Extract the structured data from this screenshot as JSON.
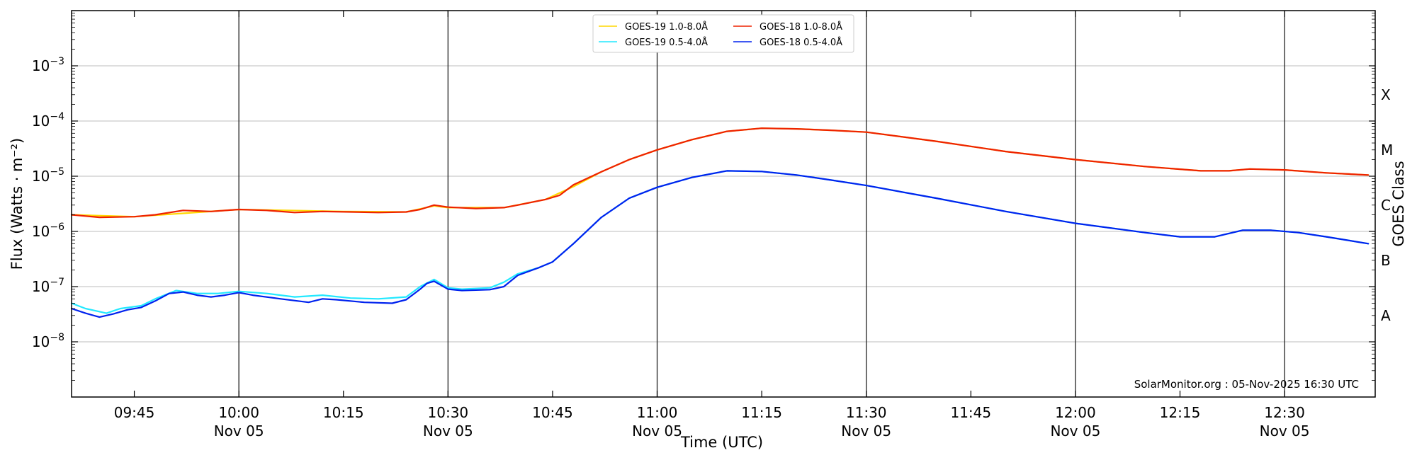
{
  "chart_data": {
    "type": "line",
    "y_scale": "log",
    "ylim": [
      1e-09,
      0.01
    ],
    "xlim": [
      "2025-11-05 09:36",
      "2025-11-05 12:43"
    ],
    "grid": "horizontal gridlines at each decade; vertical lines every 30 minutes",
    "legend_position": "top-center",
    "xlabel": "Time (UTC)",
    "ylabel": "Flux (Watts · m⁻²)",
    "ylabel_right": "GOES Class",
    "x_ticks": [
      {
        "time": "09:45",
        "date": ""
      },
      {
        "time": "10:00",
        "date": "Nov 05"
      },
      {
        "time": "10:15",
        "date": ""
      },
      {
        "time": "10:30",
        "date": "Nov 05"
      },
      {
        "time": "10:45",
        "date": ""
      },
      {
        "time": "11:00",
        "date": "Nov 05"
      },
      {
        "time": "11:15",
        "date": ""
      },
      {
        "time": "11:30",
        "date": "Nov 05"
      },
      {
        "time": "11:45",
        "date": ""
      },
      {
        "time": "12:00",
        "date": "Nov 05"
      },
      {
        "time": "12:15",
        "date": ""
      },
      {
        "time": "12:30",
        "date": "Nov 05"
      }
    ],
    "y_ticks": [
      {
        "value": 1e-08,
        "base": "10",
        "exp": "−8"
      },
      {
        "value": 1e-07,
        "base": "10",
        "exp": "−7"
      },
      {
        "value": 1e-06,
        "base": "10",
        "exp": "−6"
      },
      {
        "value": 1e-05,
        "base": "10",
        "exp": "−5"
      },
      {
        "value": 0.0001,
        "base": "10",
        "exp": "−4"
      },
      {
        "value": 0.001,
        "base": "10",
        "exp": "−3"
      }
    ],
    "goes_classes": [
      {
        "label": "A",
        "flux": 3e-08
      },
      {
        "label": "B",
        "flux": 3e-07
      },
      {
        "label": "C",
        "flux": 3e-06
      },
      {
        "label": "M",
        "flux": 3e-05
      },
      {
        "label": "X",
        "flux": 0.0003
      }
    ],
    "credit": "SolarMonitor.org : 05-Nov-2025 16:30 UTC",
    "series": [
      {
        "name": "GOES-19 1.0-8.0Å",
        "color": "#ffd700",
        "x": [
          "09:36",
          "09:45",
          "10:00",
          "10:15",
          "10:24",
          "10:28",
          "10:30",
          "10:38",
          "10:44",
          "10:48",
          "10:52",
          "10:56",
          "11:00",
          "11:05",
          "11:10",
          "11:15",
          "11:20",
          "11:25",
          "11:30",
          "11:40",
          "11:50",
          "12:00",
          "12:10",
          "12:18",
          "12:22",
          "12:25",
          "12:30",
          "12:36",
          "12:42"
        ],
        "y": [
          2e-06,
          1.85e-06,
          2.5e-06,
          2.3e-06,
          2.25e-06,
          2.9e-06,
          2.7e-06,
          2.7e-06,
          3.8e-06,
          6.5e-06,
          1.2e-05,
          2e-05,
          3e-05,
          4.6e-05,
          6.5e-05,
          7.4e-05,
          7.2e-05,
          6.8e-05,
          6.3e-05,
          4.3e-05,
          2.8e-05,
          2e-05,
          1.5e-05,
          1.25e-05,
          1.25e-05,
          1.35e-05,
          1.3e-05,
          1.15e-05,
          1.05e-05
        ]
      },
      {
        "name": "GOES-18 1.0-8.0Å",
        "color": "#ee2200",
        "x": [
          "09:36",
          "09:38",
          "09:40",
          "09:45",
          "09:48",
          "09:52",
          "09:56",
          "10:00",
          "10:04",
          "10:08",
          "10:12",
          "10:16",
          "10:20",
          "10:24",
          "10:26",
          "10:28",
          "10:30",
          "10:34",
          "10:38",
          "10:40",
          "10:44",
          "10:46",
          "10:48",
          "10:52",
          "10:56",
          "11:00",
          "11:05",
          "11:10",
          "11:15",
          "11:20",
          "11:25",
          "11:30",
          "11:40",
          "11:50",
          "12:00",
          "12:10",
          "12:18",
          "12:22",
          "12:25",
          "12:30",
          "12:36",
          "12:42"
        ],
        "y": [
          2e-06,
          1.9e-06,
          1.8e-06,
          1.85e-06,
          2e-06,
          2.4e-06,
          2.3e-06,
          2.5e-06,
          2.4e-06,
          2.2e-06,
          2.3e-06,
          2.25e-06,
          2.2e-06,
          2.25e-06,
          2.5e-06,
          3e-06,
          2.75e-06,
          2.6e-06,
          2.7e-06,
          3e-06,
          3.8e-06,
          4.5e-06,
          7e-06,
          1.2e-05,
          2e-05,
          3e-05,
          4.6e-05,
          6.5e-05,
          7.4e-05,
          7.2e-05,
          6.8e-05,
          6.3e-05,
          4.3e-05,
          2.8e-05,
          2e-05,
          1.5e-05,
          1.25e-05,
          1.25e-05,
          1.35e-05,
          1.3e-05,
          1.15e-05,
          1.05e-05
        ]
      },
      {
        "name": "GOES-19 0.5-4.0Å",
        "color": "#22e8ff",
        "x": [
          "09:36",
          "09:38",
          "09:41",
          "09:43",
          "09:46",
          "09:48",
          "09:51",
          "09:54",
          "09:57",
          "10:00",
          "10:04",
          "10:08",
          "10:12",
          "10:16",
          "10:20",
          "10:24",
          "10:26",
          "10:28",
          "10:30",
          "10:32",
          "10:36",
          "10:38",
          "10:40",
          "10:43",
          "10:45",
          "10:48",
          "10:52",
          "10:56",
          "11:00",
          "11:05",
          "11:10",
          "11:15",
          "11:20",
          "11:25",
          "11:30",
          "11:40",
          "11:50",
          "12:00",
          "12:10",
          "12:15",
          "12:20",
          "12:24",
          "12:28",
          "12:32",
          "12:36",
          "12:42"
        ],
        "y": [
          5e-08,
          4e-08,
          3.3e-08,
          4e-08,
          4.5e-08,
          6e-08,
          8.5e-08,
          7.5e-08,
          7.5e-08,
          8.2e-08,
          7.5e-08,
          6.5e-08,
          7e-08,
          6.2e-08,
          6e-08,
          6.5e-08,
          1e-07,
          1.35e-07,
          9.5e-08,
          9e-08,
          9.5e-08,
          1.2e-07,
          1.7e-07,
          2.2e-07,
          2.8e-07,
          6e-07,
          1.8e-06,
          4e-06,
          6.3e-06,
          9.5e-06,
          1.25e-05,
          1.22e-05,
          1.05e-05,
          8.5e-06,
          6.8e-06,
          4e-06,
          2.3e-06,
          1.4e-06,
          9.5e-07,
          8e-07,
          8e-07,
          1.05e-06,
          1.05e-06,
          9.5e-07,
          8e-07,
          6e-07
        ]
      },
      {
        "name": "GOES-18 0.5-4.0Å",
        "color": "#0022ee",
        "x": [
          "09:36",
          "09:38",
          "09:40",
          "09:42",
          "09:44",
          "09:46",
          "09:48",
          "09:50",
          "09:52",
          "09:54",
          "09:56",
          "09:58",
          "10:00",
          "10:02",
          "10:06",
          "10:10",
          "10:12",
          "10:14",
          "10:18",
          "10:22",
          "10:24",
          "10:26",
          "10:27",
          "10:28",
          "10:30",
          "10:32",
          "10:36",
          "10:38",
          "10:40",
          "10:43",
          "10:45",
          "10:48",
          "10:52",
          "10:56",
          "11:00",
          "11:05",
          "11:10",
          "11:15",
          "11:20",
          "11:25",
          "11:30",
          "11:40",
          "11:50",
          "12:00",
          "12:10",
          "12:15",
          "12:20",
          "12:24",
          "12:28",
          "12:32",
          "12:36",
          "12:42"
        ],
        "y": [
          4e-08,
          3.3e-08,
          2.8e-08,
          3.2e-08,
          3.8e-08,
          4.2e-08,
          5.5e-08,
          7.5e-08,
          8e-08,
          7e-08,
          6.5e-08,
          7e-08,
          7.8e-08,
          7e-08,
          6e-08,
          5.2e-08,
          6e-08,
          5.8e-08,
          5.2e-08,
          5e-08,
          5.8e-08,
          9e-08,
          1.15e-07,
          1.25e-07,
          9e-08,
          8.5e-08,
          8.8e-08,
          1e-07,
          1.6e-07,
          2.2e-07,
          2.8e-07,
          6e-07,
          1.8e-06,
          4e-06,
          6.3e-06,
          9.5e-06,
          1.25e-05,
          1.22e-05,
          1.05e-05,
          8.5e-06,
          6.8e-06,
          4e-06,
          2.3e-06,
          1.4e-06,
          9.5e-07,
          8e-07,
          8e-07,
          1.05e-06,
          1.05e-06,
          9.5e-07,
          8e-07,
          6e-07
        ]
      }
    ]
  }
}
